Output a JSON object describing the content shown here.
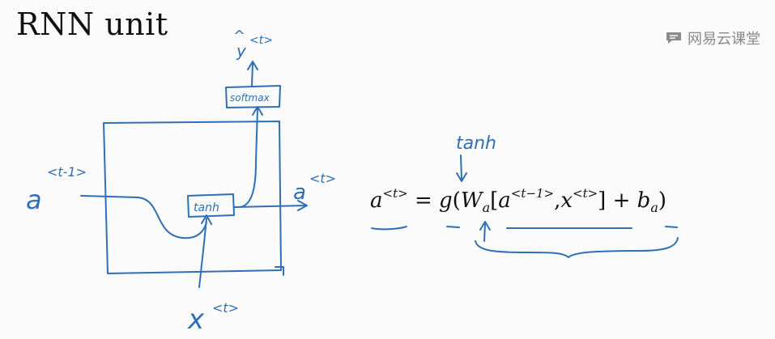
{
  "title": "RNN unit",
  "watermark": {
    "text": "网易云课堂",
    "icon": "chat-bubble-icon"
  },
  "diagram": {
    "input_prev_activation": {
      "symbol": "a",
      "superscript": "<t-1>"
    },
    "output_activation": {
      "symbol": "a",
      "superscript": "<t>"
    },
    "input_x": {
      "symbol": "x",
      "superscript": "<t>"
    },
    "output_y": {
      "symbol": "y",
      "hat": "^",
      "superscript": "<t>"
    },
    "tanh_box_label": "tanh",
    "softmax_box_label": "softmax",
    "tanh_annotation": "tanh"
  },
  "equation": {
    "lhs": "a",
    "lhs_sup": "<t>",
    "equals": "=",
    "func": "g",
    "open_paren": "(",
    "weight": "W",
    "weight_sub": "a",
    "open_bracket": "[",
    "term1": "a",
    "term1_sup": "<t−1>",
    "comma": ",",
    "term2": "x",
    "term2_sup": "<t>",
    "close_bracket": "]",
    "plus": "+",
    "bias": "b",
    "bias_sub": "a",
    "close_paren": ")"
  },
  "colors": {
    "ink": "#2f6fb5",
    "text": "#111111",
    "watermark": "#8a8a8a"
  }
}
